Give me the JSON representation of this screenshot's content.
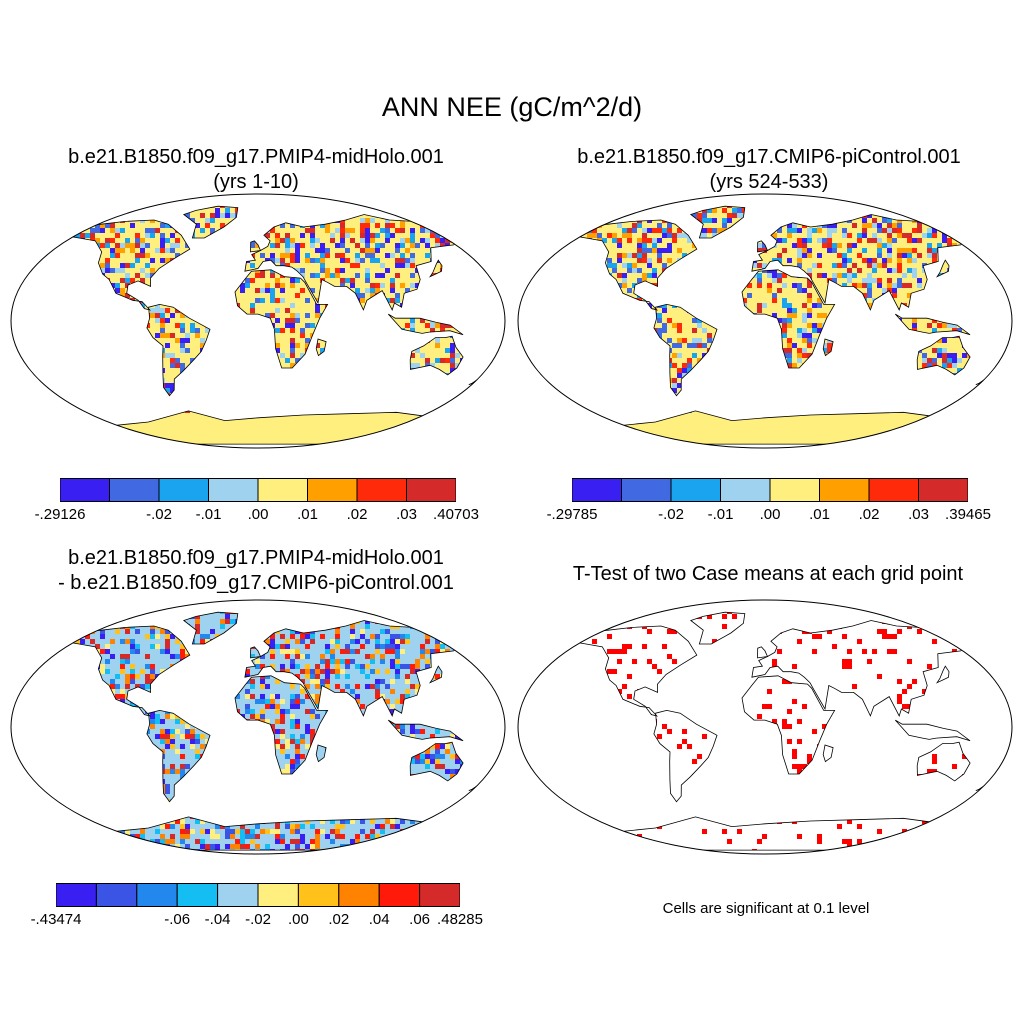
{
  "chart_data": {
    "type": "map",
    "title": "ANN NEE (gC/m^2/d)",
    "panels": [
      {
        "title_line1": "b.e21.B1850.f09_g17.PMIP4-midHolo.001",
        "title_line2": "(yrs 1-10)",
        "variable": "NEE",
        "units": "gC/m^2/d",
        "colorbar": {
          "colors": [
            "#3a1ff2",
            "#4169e1",
            "#1aa3ef",
            "#9fd2ee",
            "#ffef7f",
            "#ff9f00",
            "#ff2a0a",
            "#d42a2a"
          ],
          "tick_labels": [
            "-.29126",
            "-.02",
            "-.01",
            ".00",
            ".01",
            ".02",
            ".03",
            ".40703"
          ],
          "min": -0.29126,
          "max": 0.40703
        }
      },
      {
        "title_line1": "b.e21.B1850.f09_g17.CMIP6-piControl.001",
        "title_line2": "(yrs 524-533)",
        "variable": "NEE",
        "units": "gC/m^2/d",
        "colorbar": {
          "colors": [
            "#3a1ff2",
            "#4169e1",
            "#1aa3ef",
            "#9fd2ee",
            "#ffef7f",
            "#ff9f00",
            "#ff2a0a",
            "#d42a2a"
          ],
          "tick_labels": [
            "-.29785",
            "-.02",
            "-.01",
            ".00",
            ".01",
            ".02",
            ".03",
            ".39465"
          ],
          "min": -0.29785,
          "max": 0.39465
        }
      },
      {
        "title_line1": "b.e21.B1850.f09_g17.PMIP4-midHolo.001",
        "title_line2": "- b.e21.B1850.f09_g17.CMIP6-piControl.001",
        "variable": "NEE difference",
        "units": "gC/m^2/d",
        "colorbar": {
          "colors": [
            "#3a1ff2",
            "#3a55e6",
            "#2288ee",
            "#14bdf2",
            "#9fd2ee",
            "#ffef7f",
            "#ffc11a",
            "#ff8200",
            "#ff1a0a",
            "#d42a2a"
          ],
          "tick_labels": [
            "-.43474",
            "-.06",
            "-.04",
            "-.02",
            ".00",
            ".02",
            ".04",
            ".06",
            ".48285"
          ],
          "min": -0.43474,
          "max": 0.48285
        }
      },
      {
        "title_line1": "T-Test of two Case means at each grid point",
        "note": "Cells are significant at 0.1 level",
        "significance_level": 0.1
      }
    ]
  },
  "colors": {
    "land_base": "#ffef7f",
    "sig_red": "#ff0000",
    "coast": "#000000"
  }
}
